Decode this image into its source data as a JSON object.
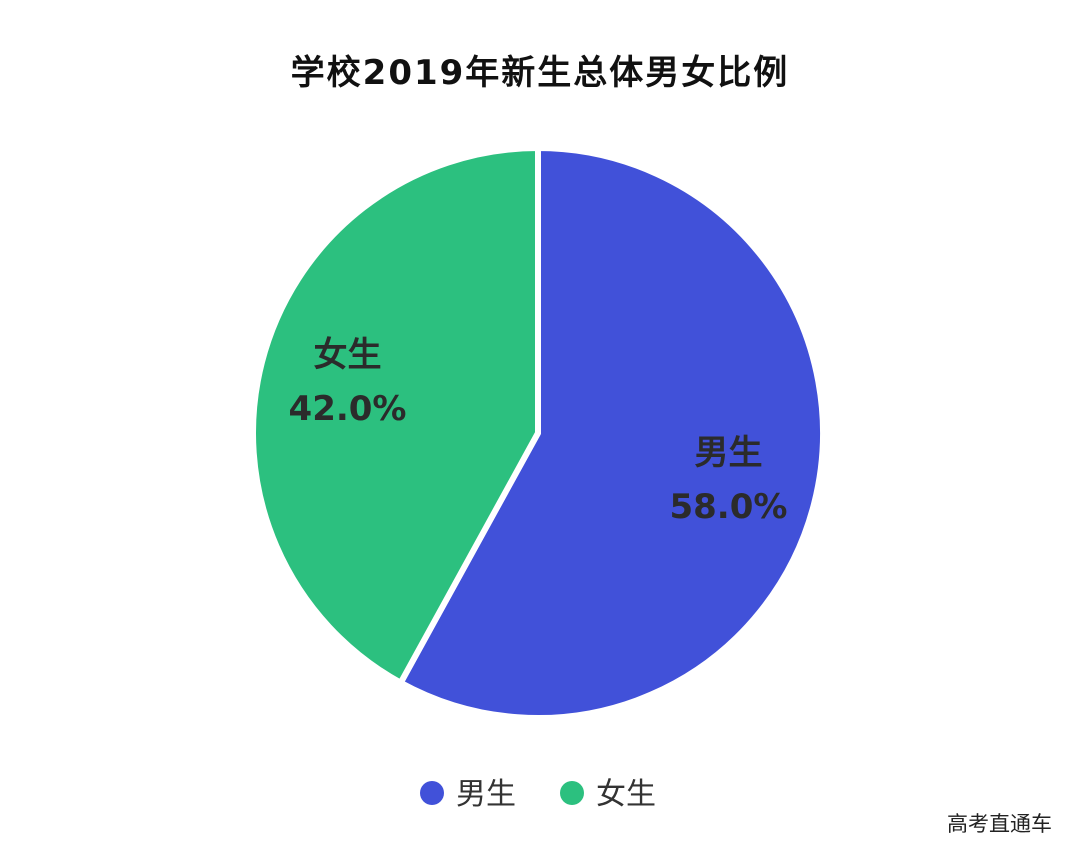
{
  "watermark": "高考直通车",
  "chart_data": {
    "type": "pie",
    "title": "学校2019年新生总体男女比例",
    "slices": [
      {
        "name": "男生",
        "value": 58.0,
        "label": "58.0%",
        "color": "#4151d9"
      },
      {
        "name": "女生",
        "value": 42.0,
        "label": "42.0%",
        "color": "#2cc07f"
      }
    ],
    "legend": {
      "placement": "bottom",
      "entries": [
        "男生",
        "女生"
      ]
    }
  }
}
